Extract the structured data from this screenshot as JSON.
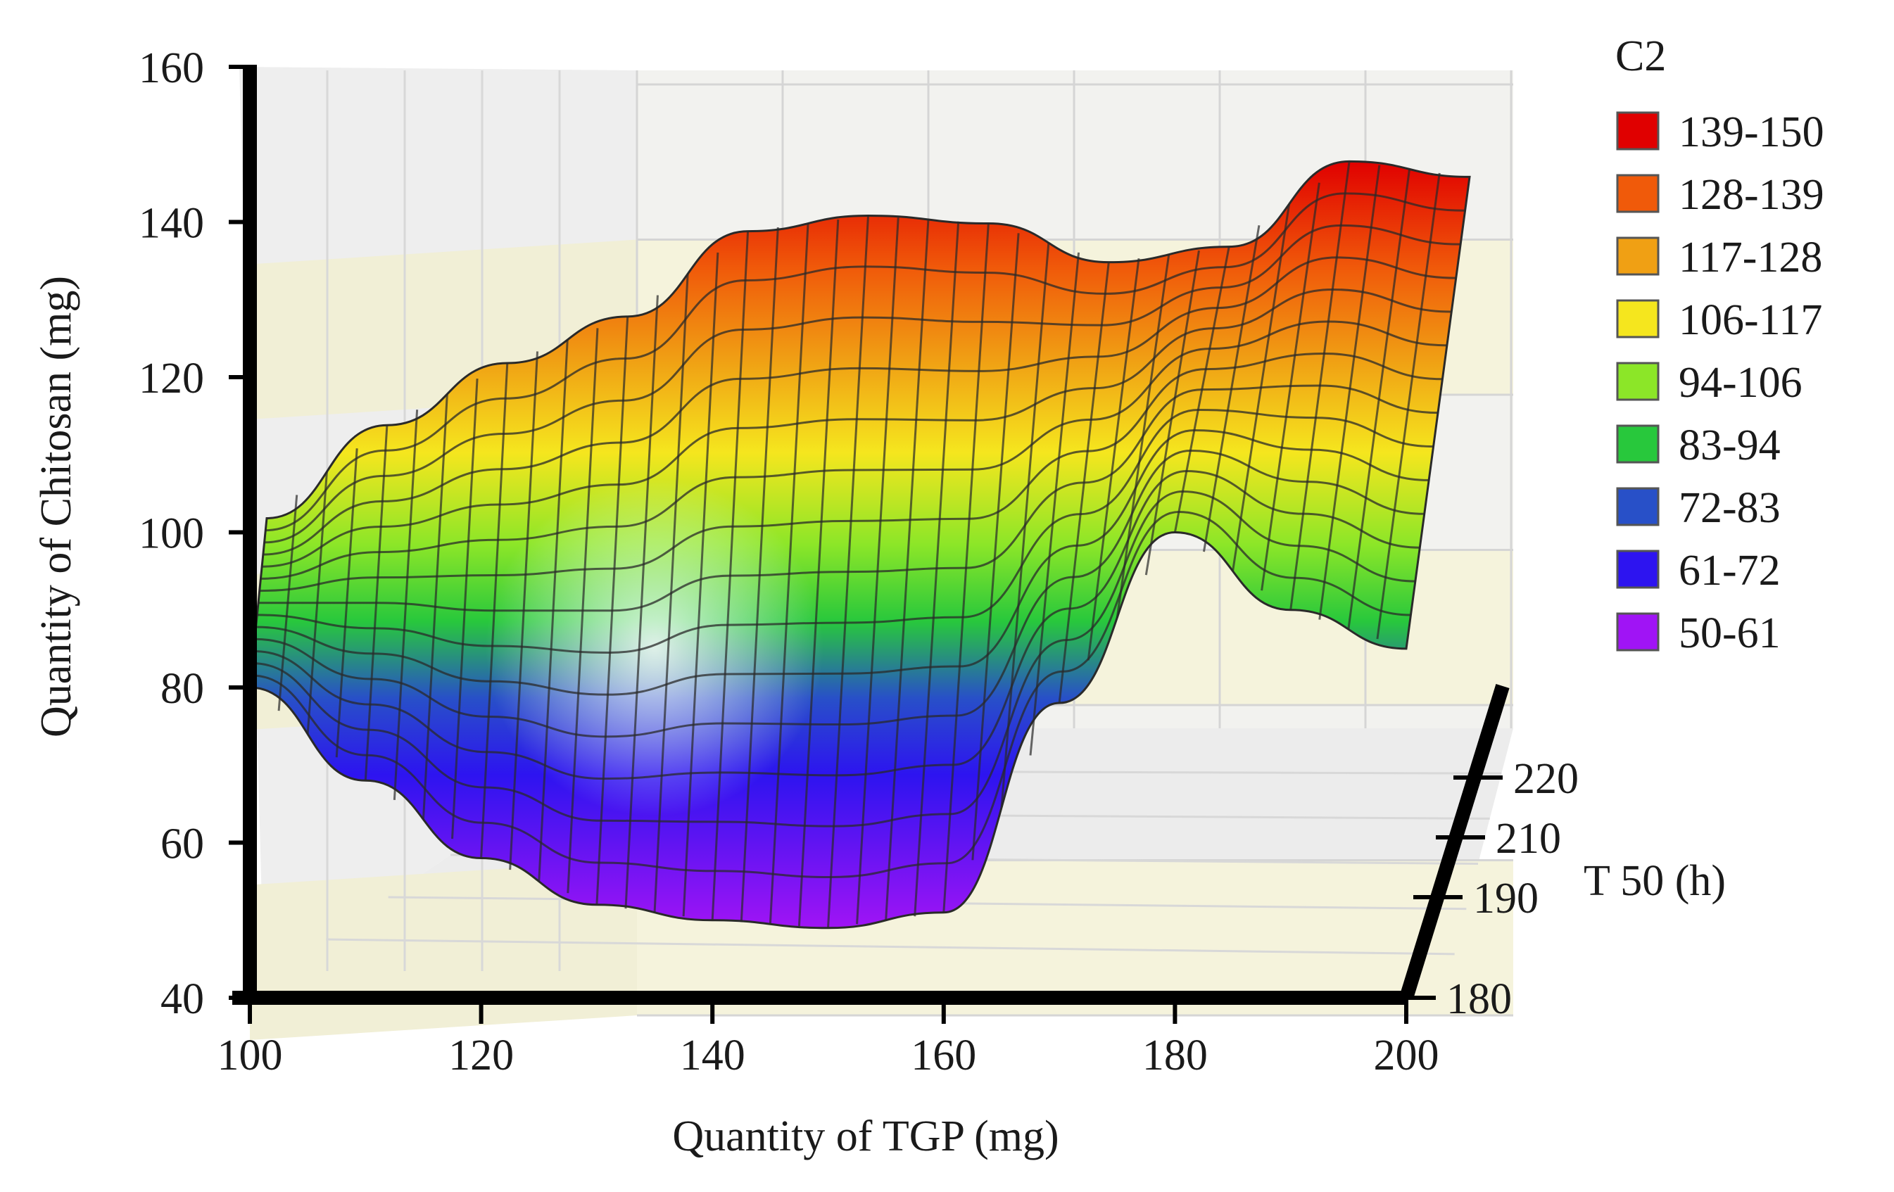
{
  "chart_data": {
    "type": "surface3d",
    "title": "",
    "xlabel": "Quantity of TGP (mg)",
    "ylabel": "Quantity of Chitosan (mg)",
    "zlabel": "T 50 (h)",
    "xlim": [
      100,
      200
    ],
    "ylim": [
      40,
      160
    ],
    "x_ticks": [
      100,
      120,
      140,
      160,
      180,
      200
    ],
    "y_ticks": [
      40,
      60,
      80,
      100,
      120,
      140,
      160
    ],
    "z_ticks": [
      180,
      190,
      210,
      220
    ],
    "legend_title": "C2",
    "legend": [
      {
        "label": "139-150",
        "color": "#e00000"
      },
      {
        "label": "128-139",
        "color": "#f05a0a"
      },
      {
        "label": "117-128",
        "color": "#f0a014"
      },
      {
        "label": "106-117",
        "color": "#f5e61e"
      },
      {
        "label": "94-106",
        "color": "#8ce628"
      },
      {
        "label": "83-94",
        "color": "#28c83c"
      },
      {
        "label": "72-83",
        "color": "#2850c8"
      },
      {
        "label": "61-72",
        "color": "#2d14f0"
      },
      {
        "label": "50-61",
        "color": "#a014f5"
      }
    ],
    "surface_profile": {
      "x": [
        100,
        110,
        120,
        130,
        140,
        150,
        160,
        170,
        180,
        190,
        200
      ],
      "front_edge_chitosan": [
        80,
        68,
        58,
        52,
        50,
        49,
        51,
        78,
        100,
        90,
        85
      ],
      "back_edge_chitosan": [
        100,
        112,
        120,
        126,
        137,
        139,
        138,
        133,
        135,
        146,
        144
      ]
    }
  }
}
